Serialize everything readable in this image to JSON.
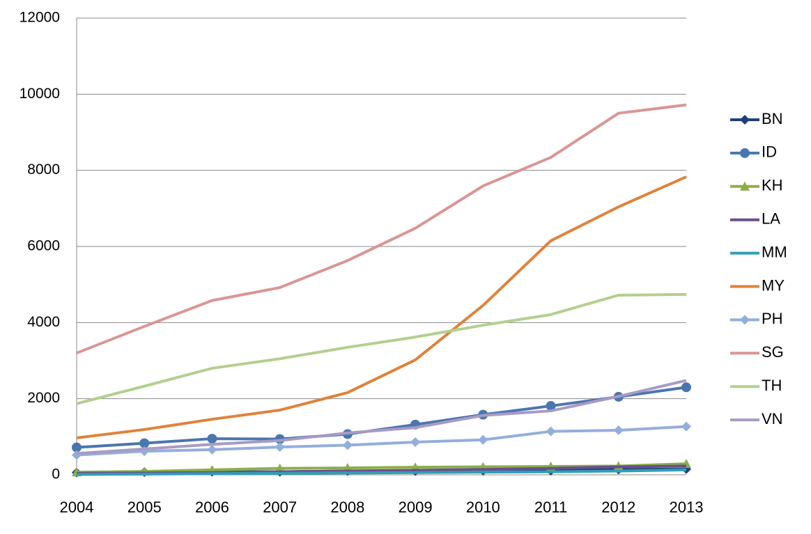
{
  "chart_data": {
    "type": "line",
    "categories": [
      "2004",
      "2005",
      "2006",
      "2007",
      "2008",
      "2009",
      "2010",
      "2011",
      "2012",
      "2013"
    ],
    "ylim": [
      0,
      12000
    ],
    "yticks": [
      0,
      2000,
      4000,
      6000,
      8000,
      10000,
      12000
    ],
    "grid": true,
    "legend": "right",
    "series": [
      {
        "name": "BN",
        "color": "#1f3f7a",
        "marker": "diamond",
        "values": [
          60,
          70,
          80,
          80,
          100,
          100,
          110,
          110,
          140,
          150
        ]
      },
      {
        "name": "ID",
        "color": "#4a76b0",
        "marker": "circle",
        "values": [
          720,
          830,
          950,
          940,
          1070,
          1320,
          1580,
          1810,
          2050,
          2300
        ]
      },
      {
        "name": "KH",
        "color": "#8cae4a",
        "marker": "triangle",
        "values": [
          70,
          90,
          130,
          170,
          180,
          200,
          210,
          220,
          230,
          290
        ]
      },
      {
        "name": "LA",
        "color": "#6b4e8e",
        "marker": null,
        "values": [
          40,
          50,
          60,
          80,
          100,
          120,
          140,
          170,
          210,
          230
        ]
      },
      {
        "name": "MM",
        "color": "#2f9fb5",
        "marker": null,
        "values": [
          10,
          20,
          30,
          40,
          50,
          60,
          70,
          80,
          100,
          130
        ]
      },
      {
        "name": "MY",
        "color": "#e0823a",
        "marker": null,
        "values": [
          970,
          1190,
          1460,
          1700,
          2160,
          3020,
          4450,
          6150,
          7040,
          7830
        ]
      },
      {
        "name": "PH",
        "color": "#93aedc",
        "marker": "diamond",
        "values": [
          520,
          620,
          660,
          730,
          780,
          860,
          920,
          1140,
          1170,
          1270
        ]
      },
      {
        "name": "SG",
        "color": "#d99694",
        "marker": null,
        "values": [
          3200,
          3900,
          4580,
          4920,
          5630,
          6480,
          7590,
          8340,
          9500,
          9720
        ]
      },
      {
        "name": "TH",
        "color": "#b3cf8e",
        "marker": null,
        "values": [
          1870,
          2330,
          2800,
          3050,
          3350,
          3620,
          3930,
          4210,
          4720,
          4740
        ]
      },
      {
        "name": "VN",
        "color": "#a99bc4",
        "marker": null,
        "values": [
          560,
          680,
          800,
          900,
          1100,
          1240,
          1560,
          1680,
          2060,
          2480
        ]
      }
    ]
  }
}
